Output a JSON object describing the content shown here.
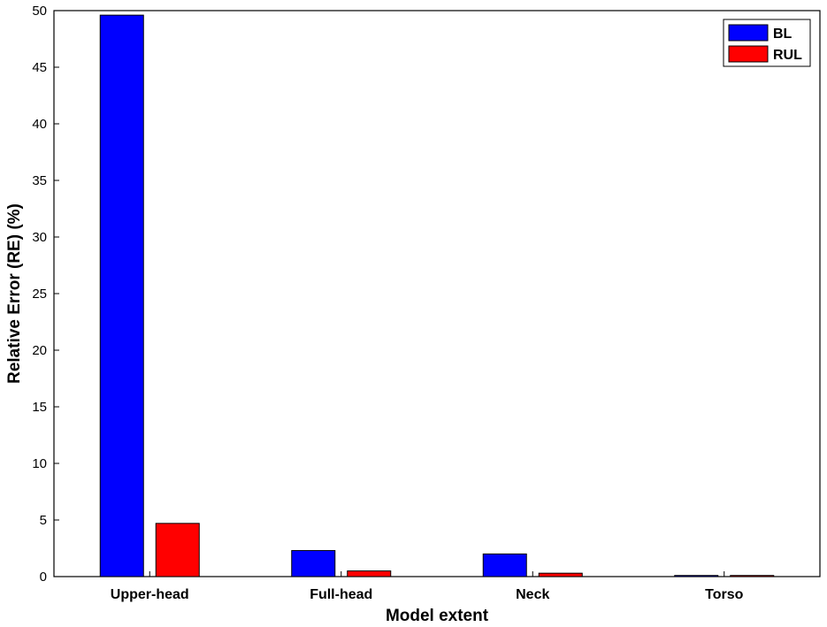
{
  "chart_data": {
    "type": "bar",
    "categories": [
      "Upper-head",
      "Full-head",
      "Neck",
      "Torso"
    ],
    "series": [
      {
        "name": "BL",
        "color": "#0000ff",
        "values": [
          49.6,
          2.3,
          2.0,
          0.1
        ]
      },
      {
        "name": "RUL",
        "color": "#ff0000",
        "values": [
          4.7,
          0.5,
          0.3,
          0.1
        ]
      }
    ],
    "xlabel": "Model extent",
    "ylabel": "Relative Error (RE) (%)",
    "ylim": [
      0,
      50
    ],
    "yticks": [
      "0",
      "5",
      "10",
      "15",
      "20",
      "25",
      "30",
      "35",
      "40",
      "45",
      "50"
    ],
    "grid": false,
    "legend_position": "top-right"
  }
}
